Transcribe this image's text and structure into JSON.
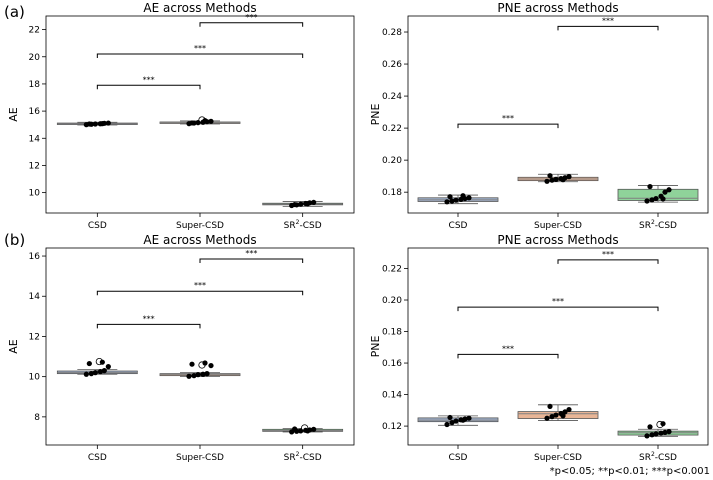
{
  "figure": {
    "footnote": "*p<0.05; **p<0.01; ***p<0.001",
    "panel_labels": [
      "(a)",
      "(b)"
    ]
  },
  "colors": {
    "CSD": "#9fb1cc",
    "Super-CSD": "#e8b596",
    "SR2-CSD": "#8fd39a",
    "median": "#808080",
    "point": "#000000"
  },
  "chart_data": [
    {
      "type": "box",
      "title": "AE across Methods",
      "xlabel": "",
      "ylabel": "AE",
      "categories": [
        "CSD",
        "Super-CSD",
        "SR2-CSD"
      ],
      "category_labels": [
        [
          "CSD"
        ],
        [
          "Super-CSD"
        ],
        [
          "SR",
          "2",
          "-CSD"
        ]
      ],
      "ylim": [
        8.5,
        23.0
      ],
      "yticks": [
        10,
        12,
        14,
        16,
        18,
        20,
        22
      ],
      "ytick_labels": [
        "10",
        "12",
        "14",
        "16",
        "18",
        "20",
        "22"
      ],
      "boxes": [
        {
          "category": "CSD",
          "whislo": 14.98,
          "q1": 15.02,
          "med": 15.06,
          "q3": 15.12,
          "whishi": 15.18,
          "points": [
            15.0,
            15.03,
            15.05,
            15.07,
            15.1,
            15.12,
            15.05,
            15.08
          ],
          "outliers": []
        },
        {
          "category": "Super-CSD",
          "whislo": 15.05,
          "q1": 15.1,
          "med": 15.15,
          "q3": 15.2,
          "whishi": 15.28,
          "points": [
            15.08,
            15.12,
            15.15,
            15.18,
            15.22,
            15.25,
            15.13,
            15.3
          ],
          "outliers": [
            15.35
          ]
        },
        {
          "category": "SR2-CSD",
          "whislo": 8.98,
          "q1": 9.1,
          "med": 9.15,
          "q3": 9.22,
          "whishi": 9.35,
          "points": [
            9.05,
            9.1,
            9.15,
            9.2,
            9.25,
            9.28,
            9.12,
            9.18
          ],
          "outliers": []
        }
      ],
      "significance": [
        {
          "from": 0,
          "to": 1,
          "y": 17.9,
          "label": "***"
        },
        {
          "from": 0,
          "to": 2,
          "y": 20.2,
          "label": "***"
        },
        {
          "from": 1,
          "to": 2,
          "y": 22.5,
          "label": "***"
        }
      ]
    },
    {
      "type": "box",
      "title": "PNE across Methods",
      "xlabel": "",
      "ylabel": "PNE",
      "categories": [
        "CSD",
        "Super-CSD",
        "SR2-CSD"
      ],
      "category_labels": [
        [
          "CSD"
        ],
        [
          "Super-CSD"
        ],
        [
          "SR",
          "2",
          "-CSD"
        ]
      ],
      "ylim": [
        0.167,
        0.29
      ],
      "yticks": [
        0.18,
        0.2,
        0.22,
        0.24,
        0.26,
        0.28
      ],
      "ytick_labels": [
        "0.18",
        "0.20",
        "0.22",
        "0.24",
        "0.26",
        "0.28"
      ],
      "boxes": [
        {
          "category": "CSD",
          "whislo": 0.1728,
          "q1": 0.1742,
          "med": 0.1752,
          "q3": 0.1765,
          "whishi": 0.1782,
          "points": [
            0.174,
            0.1745,
            0.175,
            0.1755,
            0.176,
            0.1765,
            0.1772,
            0.1778
          ],
          "outliers": []
        },
        {
          "category": "Super-CSD",
          "whislo": 0.1865,
          "q1": 0.1872,
          "med": 0.1882,
          "q3": 0.1893,
          "whishi": 0.1912,
          "points": [
            0.1868,
            0.1875,
            0.188,
            0.1885,
            0.189,
            0.1897,
            0.1903,
            0.1878
          ],
          "outliers": []
        },
        {
          "category": "SR2-CSD",
          "whislo": 0.1738,
          "q1": 0.1748,
          "med": 0.1762,
          "q3": 0.1818,
          "whishi": 0.1842,
          "points": [
            0.1745,
            0.1752,
            0.176,
            0.1775,
            0.18,
            0.1815,
            0.1835,
            0.1758
          ],
          "outliers": []
        }
      ],
      "significance": [
        {
          "from": 0,
          "to": 1,
          "y": 0.2225,
          "label": "***"
        },
        {
          "from": 1,
          "to": 2,
          "y": 0.2835,
          "label": "***"
        }
      ]
    },
    {
      "type": "box",
      "title": "AE across Methods",
      "xlabel": "",
      "ylabel": "AE",
      "categories": [
        "CSD",
        "Super-CSD",
        "SR2-CSD"
      ],
      "category_labels": [
        [
          "CSD"
        ],
        [
          "Super-CSD"
        ],
        [
          "SR",
          "2",
          "-CSD"
        ]
      ],
      "ylim": [
        6.6,
        16.4
      ],
      "yticks": [
        8,
        10,
        12,
        14,
        16
      ],
      "ytick_labels": [
        "8",
        "10",
        "12",
        "14",
        "16"
      ],
      "boxes": [
        {
          "category": "CSD",
          "whislo": 10.12,
          "q1": 10.15,
          "med": 10.2,
          "q3": 10.28,
          "whishi": 10.35,
          "points": [
            10.12,
            10.15,
            10.2,
            10.25,
            10.3,
            10.5,
            10.65,
            10.72
          ],
          "outliers": [
            10.75
          ]
        },
        {
          "category": "Super-CSD",
          "whislo": 10.0,
          "q1": 10.05,
          "med": 10.1,
          "q3": 10.15,
          "whishi": 10.2,
          "points": [
            10.02,
            10.05,
            10.1,
            10.12,
            10.15,
            10.55,
            10.62,
            10.68
          ],
          "outliers": [
            10.58
          ]
        },
        {
          "category": "SR2-CSD",
          "whislo": 7.25,
          "q1": 7.28,
          "med": 7.32,
          "q3": 7.38,
          "whishi": 7.42,
          "points": [
            7.25,
            7.28,
            7.3,
            7.33,
            7.35,
            7.38,
            7.4,
            7.3
          ],
          "outliers": [
            7.45
          ]
        }
      ],
      "significance": [
        {
          "from": 0,
          "to": 1,
          "y": 12.6,
          "label": "***"
        },
        {
          "from": 0,
          "to": 2,
          "y": 14.25,
          "label": "***"
        },
        {
          "from": 1,
          "to": 2,
          "y": 15.85,
          "label": "***"
        }
      ]
    },
    {
      "type": "box",
      "title": "PNE across Methods",
      "xlabel": "",
      "ylabel": "PNE",
      "categories": [
        "CSD",
        "Super-CSD",
        "SR2-CSD"
      ],
      "category_labels": [
        [
          "CSD"
        ],
        [
          "Super-CSD"
        ],
        [
          "SR",
          "2",
          "-CSD"
        ]
      ],
      "ylim": [
        0.108,
        0.233
      ],
      "yticks": [
        0.12,
        0.14,
        0.16,
        0.18,
        0.2,
        0.22
      ],
      "ytick_labels": [
        "0.12",
        "0.14",
        "0.16",
        "0.18",
        "0.20",
        "0.22"
      ],
      "boxes": [
        {
          "category": "CSD",
          "whislo": 0.1205,
          "q1": 0.1228,
          "med": 0.1238,
          "q3": 0.1252,
          "whishi": 0.1265,
          "points": [
            0.121,
            0.1222,
            0.1232,
            0.124,
            0.1245,
            0.125,
            0.1255,
            0.1238
          ],
          "outliers": []
        },
        {
          "category": "Super-CSD",
          "whislo": 0.1235,
          "q1": 0.1248,
          "med": 0.1278,
          "q3": 0.1292,
          "whishi": 0.1335,
          "points": [
            0.125,
            0.126,
            0.127,
            0.128,
            0.129,
            0.1305,
            0.1325,
            0.1265
          ],
          "outliers": []
        },
        {
          "category": "SR2-CSD",
          "whislo": 0.1135,
          "q1": 0.1143,
          "med": 0.1158,
          "q3": 0.1168,
          "whishi": 0.118,
          "points": [
            0.1138,
            0.1145,
            0.115,
            0.1155,
            0.116,
            0.1165,
            0.1195,
            0.1215
          ],
          "outliers": [
            0.121
          ]
        }
      ],
      "significance": [
        {
          "from": 0,
          "to": 1,
          "y": 0.1655,
          "label": "***"
        },
        {
          "from": 0,
          "to": 2,
          "y": 0.1955,
          "label": "***"
        },
        {
          "from": 1,
          "to": 2,
          "y": 0.2255,
          "label": "***"
        }
      ]
    }
  ]
}
